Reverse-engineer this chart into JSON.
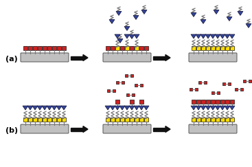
{
  "fig_width": 3.67,
  "fig_height": 2.43,
  "dpi": 100,
  "background": "#ffffff",
  "label_a": "(a)",
  "label_b": "(b)",
  "colors": {
    "red": "#cc2222",
    "yellow": "#ffdd00",
    "blue": "#334499",
    "gray_substrate": "#c0c0c0",
    "gray_stem": "#777777",
    "arrow": "#111111",
    "white": "#ffffff",
    "edge_dark": "#222222"
  }
}
